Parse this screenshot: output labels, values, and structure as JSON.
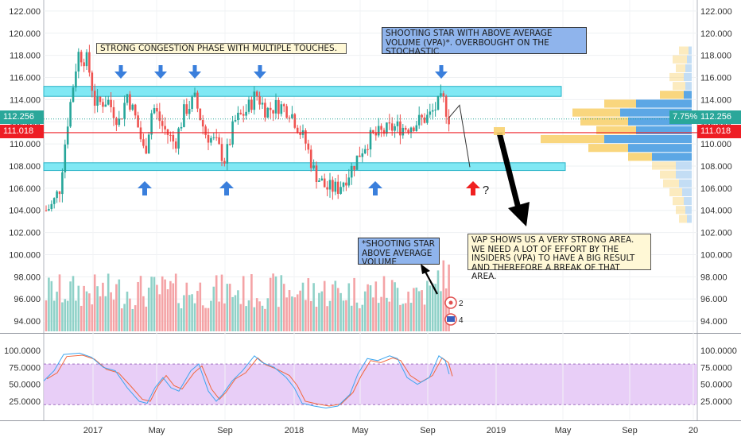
{
  "chart_data": {
    "type": "candlestick",
    "price_axis": {
      "ticks": [
        "122.000",
        "120.000",
        "118.000",
        "116.000",
        "114.000",
        "112.000",
        "110.000",
        "108.000",
        "106.000",
        "104.000",
        "102.000",
        "100.000",
        "98.000",
        "96.000",
        "94.000"
      ],
      "ylim": [
        93.0,
        123.0
      ]
    },
    "oscillator_axis": {
      "ticks": [
        "100.0000",
        "75.0000",
        "50.0000",
        "25.0000"
      ],
      "ylim": [
        5,
        100
      ],
      "band": [
        20,
        80
      ]
    },
    "time_axis": {
      "labels": [
        "2017",
        "May",
        "Sep",
        "2018",
        "May",
        "Sep",
        "2019",
        "May",
        "Sep",
        "20"
      ]
    },
    "current_price": "112.256",
    "marked_level": "111.018",
    "percent_label": "7.75%",
    "zones": [
      {
        "low": 114.3,
        "high": 115.2
      },
      {
        "low": 107.6,
        "high": 108.3
      }
    ],
    "volume_profile_rows": [
      {
        "y": 118.4,
        "yellow": 0.08,
        "blue": 0.02
      },
      {
        "y": 117.6,
        "yellow": 0.12,
        "blue": 0.03
      },
      {
        "y": 116.8,
        "yellow": 0.1,
        "blue": 0.04
      },
      {
        "y": 116.0,
        "yellow": 0.14,
        "blue": 0.05
      },
      {
        "y": 115.2,
        "yellow": 0.12,
        "blue": 0.04
      },
      {
        "y": 114.4,
        "yellow": 0.2,
        "blue": 0.05
      },
      {
        "y": 113.6,
        "yellow": 0.55,
        "blue": 0.35
      },
      {
        "y": 112.8,
        "yellow": 0.75,
        "blue": 0.45
      },
      {
        "y": 112.0,
        "yellow": 0.7,
        "blue": 0.4
      },
      {
        "y": 111.2,
        "yellow": 0.6,
        "blue": 0.35
      },
      {
        "y": 110.4,
        "yellow": 0.95,
        "blue": 0.55
      },
      {
        "y": 109.6,
        "yellow": 0.65,
        "blue": 0.4
      },
      {
        "y": 108.8,
        "yellow": 0.4,
        "blue": 0.25
      },
      {
        "y": 108.0,
        "yellow": 0.25,
        "blue": 0.1
      },
      {
        "y": 107.2,
        "yellow": 0.2,
        "blue": 0.1
      },
      {
        "y": 106.4,
        "yellow": 0.18,
        "blue": 0.08
      },
      {
        "y": 105.6,
        "yellow": 0.14,
        "blue": 0.06
      },
      {
        "y": 104.8,
        "yellow": 0.12,
        "blue": 0.05
      },
      {
        "y": 104.0,
        "yellow": 0.1,
        "blue": 0.04
      },
      {
        "y": 103.2,
        "yellow": 0.08,
        "blue": 0.03
      }
    ],
    "annotations": [
      {
        "id": "congestion",
        "text": "STRONG CONGESTION PHASE WITH MULTIPLE TOUCHES."
      },
      {
        "id": "shooting-star-top",
        "text": "SHOOTING STAR WITH ABOVE AVERAGE VOLUME (VPA)*. OVERBOUGHT ON THE STOCHASTIC"
      },
      {
        "id": "shooting-star-volume",
        "text": "*SHOOTING STAR ABOVE AVERAGE VOLUME"
      },
      {
        "id": "vap",
        "text": "VAP SHOWS US A VERY STRONG AREA. WE NEED A LOT OF EFFORT BY THE INSIDERS (VPA) TO HAVE A BIG RESULT AND THEREFORE A BREAK OF THAT AREA."
      },
      {
        "id": "question",
        "text": "?"
      }
    ],
    "event_badges": [
      "2",
      "4"
    ],
    "colors": {
      "up": "#26a69a",
      "down": "#ef5350",
      "vol_up": "#8fd1c8",
      "vol_down": "#f4a3a6",
      "zone": "#80e8f4",
      "arrow": "#3a7fdc",
      "red_arrow": "#f02020",
      "vp_yellow": "#f8d270",
      "vp_blue": "#4a9de2",
      "k_line": "#3ea6ef",
      "d_line": "#f0663c",
      "osc_band": "#e4c6f6"
    }
  }
}
